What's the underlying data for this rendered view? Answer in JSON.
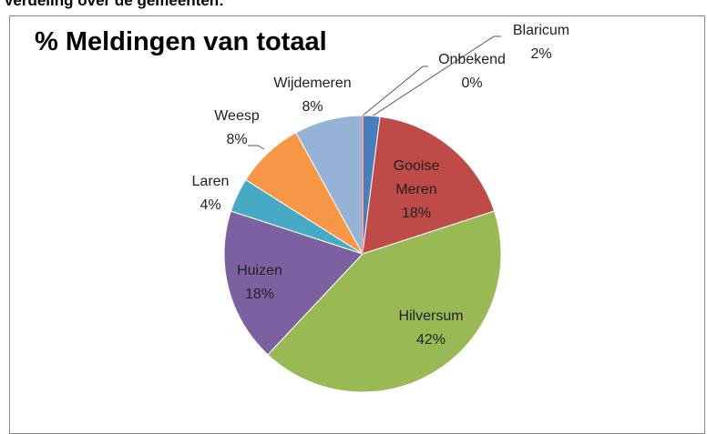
{
  "heading": "Verdeling over de gemeenten:",
  "chart_data": {
    "type": "pie",
    "title": "% Meldingen van totaal",
    "categories": [
      "Blaricum",
      "Gooise Meren",
      "Hilversum",
      "Huizen",
      "Laren",
      "Weesp",
      "Wijdemeren",
      "Onbekend"
    ],
    "values": [
      2,
      18,
      42,
      18,
      4,
      8,
      8,
      0
    ],
    "value_labels": [
      "2%",
      "18%",
      "42%",
      "18%",
      "4%",
      "8%",
      "8%",
      "0%"
    ],
    "colors": [
      "#4a7ebb",
      "#be4b48",
      "#98b954",
      "#7d60a0",
      "#46aac5",
      "#f79646",
      "#95b3d7",
      "#f2a19d"
    ]
  }
}
